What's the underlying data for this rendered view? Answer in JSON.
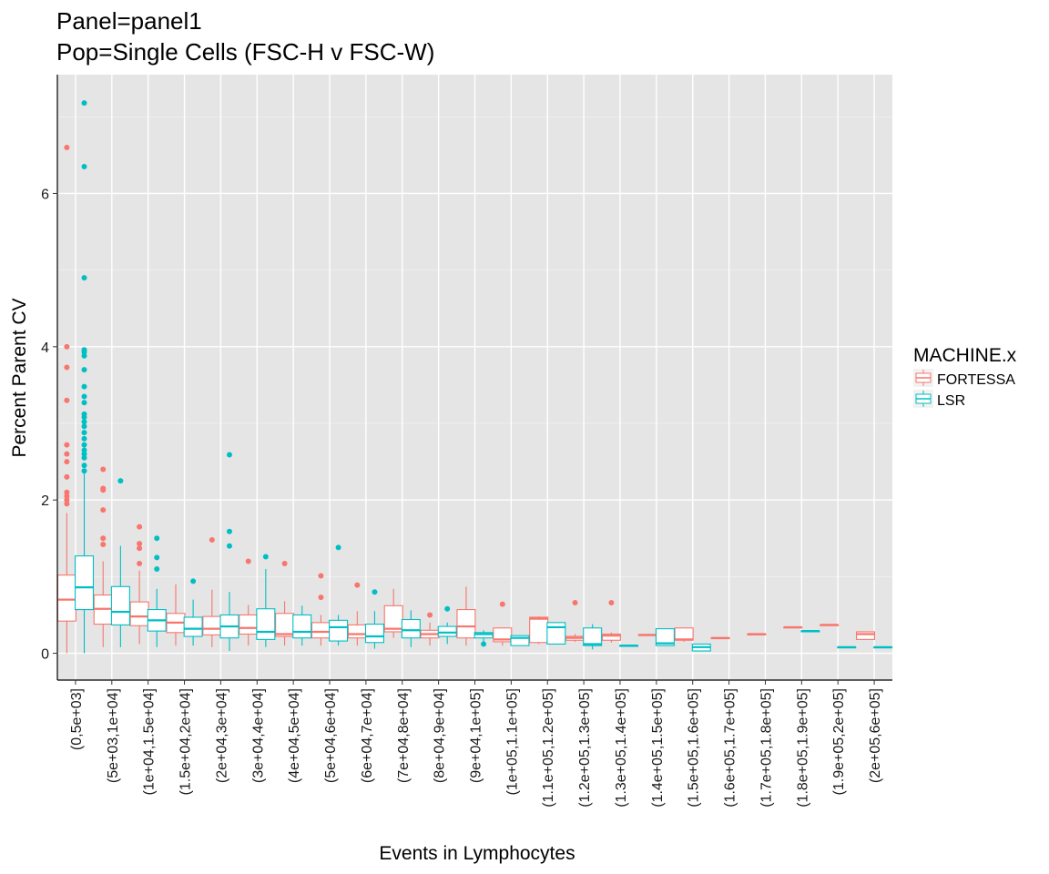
{
  "chart_data": {
    "type": "box",
    "title_lines": [
      "Panel=panel1",
      "Pop=Single Cells (FSC-H v FSC-W)"
    ],
    "xlabel": "Events in Lymphocytes",
    "ylabel": "Percent Parent CV",
    "ylim": [
      -0.35,
      7.55
    ],
    "yticks": [
      0,
      2,
      4,
      6
    ],
    "grid": true,
    "legend_position": "right",
    "legend_title": "MACHINE.x",
    "categories": [
      "(0,5e+03]",
      "(5e+03,1e+04]",
      "(1e+04,1.5e+04]",
      "(1.5e+04,2e+04]",
      "(2e+04,3e+04]",
      "(3e+04,4e+04]",
      "(4e+04,5e+04]",
      "(5e+04,6e+04]",
      "(6e+04,7e+04]",
      "(7e+04,8e+04]",
      "(8e+04,9e+04]",
      "(9e+04,1e+05]",
      "(1e+05,1.1e+05]",
      "(1.1e+05,1.2e+05]",
      "(1.2e+05,1.3e+05]",
      "(1.3e+05,1.4e+05]",
      "(1.4e+05,1.5e+05]",
      "(1.5e+05,1.6e+05]",
      "(1.6e+05,1.7e+05]",
      "(1.7e+05,1.8e+05]",
      "(1.8e+05,1.9e+05]",
      "(1.9e+05,2e+05]",
      "(2e+05,6e+05]"
    ],
    "series": [
      {
        "name": "FORTESSA",
        "color": "#F8766D",
        "boxes": [
          {
            "cat": 0,
            "min": 0.0,
            "q1": 0.42,
            "median": 0.7,
            "q3": 1.02,
            "max": 1.83,
            "outliers": [
              1.95,
              2.0,
              2.05,
              2.1,
              2.3,
              2.5,
              2.6,
              2.72,
              3.3,
              3.73,
              4.0,
              6.6
            ]
          },
          {
            "cat": 1,
            "min": 0.08,
            "q1": 0.38,
            "median": 0.58,
            "q3": 0.76,
            "max": 1.2,
            "outliers": [
              1.42,
              1.5,
              1.87,
              2.13,
              2.15,
              2.4
            ]
          },
          {
            "cat": 2,
            "min": 0.12,
            "q1": 0.36,
            "median": 0.48,
            "q3": 0.67,
            "max": 1.08,
            "outliers": [
              1.17,
              1.37,
              1.43,
              1.65
            ]
          },
          {
            "cat": 3,
            "min": 0.1,
            "q1": 0.27,
            "median": 0.4,
            "q3": 0.52,
            "max": 0.9,
            "outliers": []
          },
          {
            "cat": 4,
            "min": 0.08,
            "q1": 0.24,
            "median": 0.32,
            "q3": 0.48,
            "max": 0.83,
            "outliers": [
              1.48
            ]
          },
          {
            "cat": 5,
            "min": 0.1,
            "q1": 0.25,
            "median": 0.33,
            "q3": 0.5,
            "max": 0.63,
            "outliers": [
              1.2
            ]
          },
          {
            "cat": 6,
            "min": 0.1,
            "q1": 0.22,
            "median": 0.25,
            "q3": 0.52,
            "max": 0.68,
            "outliers": [
              1.17
            ]
          },
          {
            "cat": 7,
            "min": 0.1,
            "q1": 0.2,
            "median": 0.28,
            "q3": 0.4,
            "max": 0.5,
            "outliers": [
              0.73,
              1.01
            ]
          },
          {
            "cat": 8,
            "min": 0.1,
            "q1": 0.2,
            "median": 0.25,
            "q3": 0.37,
            "max": 0.55,
            "outliers": [
              0.89
            ]
          },
          {
            "cat": 9,
            "min": 0.2,
            "q1": 0.28,
            "median": 0.32,
            "q3": 0.62,
            "max": 0.84,
            "outliers": []
          },
          {
            "cat": 10,
            "min": 0.1,
            "q1": 0.2,
            "median": 0.25,
            "q3": 0.3,
            "max": 0.4,
            "outliers": [
              0.5
            ]
          },
          {
            "cat": 11,
            "min": 0.1,
            "q1": 0.2,
            "median": 0.35,
            "q3": 0.57,
            "max": 0.87,
            "outliers": []
          },
          {
            "cat": 12,
            "min": 0.1,
            "q1": 0.15,
            "median": 0.18,
            "q3": 0.33,
            "max": 0.33,
            "outliers": [
              0.64
            ]
          },
          {
            "cat": 13,
            "min": 0.12,
            "q1": 0.14,
            "median": 0.45,
            "q3": 0.47,
            "max": 0.48,
            "outliers": []
          },
          {
            "cat": 14,
            "min": 0.15,
            "q1": 0.17,
            "median": 0.2,
            "q3": 0.22,
            "max": 0.25,
            "outliers": [
              0.66
            ]
          },
          {
            "cat": 15,
            "min": 0.14,
            "q1": 0.17,
            "median": 0.23,
            "q3": 0.25,
            "max": 0.27,
            "outliers": [
              0.66
            ]
          },
          {
            "cat": 16,
            "min": 0.23,
            "q1": 0.23,
            "median": 0.24,
            "q3": 0.24,
            "max": 0.24,
            "outliers": []
          },
          {
            "cat": 17,
            "min": 0.15,
            "q1": 0.17,
            "median": 0.18,
            "q3": 0.33,
            "max": 0.33,
            "outliers": []
          },
          {
            "cat": 18,
            "min": 0.19,
            "q1": 0.19,
            "median": 0.2,
            "q3": 0.2,
            "max": 0.2,
            "outliers": []
          },
          {
            "cat": 19,
            "min": 0.24,
            "q1": 0.24,
            "median": 0.25,
            "q3": 0.25,
            "max": 0.25,
            "outliers": []
          },
          {
            "cat": 20,
            "min": 0.33,
            "q1": 0.33,
            "median": 0.34,
            "q3": 0.34,
            "max": 0.34,
            "outliers": []
          },
          {
            "cat": 21,
            "min": 0.36,
            "q1": 0.36,
            "median": 0.37,
            "q3": 0.37,
            "max": 0.37,
            "outliers": []
          },
          {
            "cat": 22,
            "min": 0.18,
            "q1": 0.18,
            "median": 0.25,
            "q3": 0.28,
            "max": 0.28,
            "outliers": []
          }
        ]
      },
      {
        "name": "LSR",
        "color": "#00BFC4",
        "boxes": [
          {
            "cat": 0,
            "min": 0.0,
            "q1": 0.57,
            "median": 0.86,
            "q3": 1.27,
            "max": 2.35,
            "outliers": [
              2.38,
              2.45,
              2.55,
              2.6,
              2.65,
              2.72,
              2.8,
              2.88,
              2.96,
              3.02,
              3.08,
              3.12,
              3.27,
              3.35,
              3.48,
              3.7,
              3.88,
              3.93,
              3.96,
              4.9,
              6.35,
              7.18
            ]
          },
          {
            "cat": 1,
            "min": 0.08,
            "q1": 0.37,
            "median": 0.54,
            "q3": 0.87,
            "max": 1.4,
            "outliers": [
              2.25
            ]
          },
          {
            "cat": 2,
            "min": 0.08,
            "q1": 0.29,
            "median": 0.43,
            "q3": 0.57,
            "max": 0.84,
            "outliers": [
              1.1,
              1.25,
              1.5
            ]
          },
          {
            "cat": 3,
            "min": 0.1,
            "q1": 0.22,
            "median": 0.32,
            "q3": 0.47,
            "max": 0.7,
            "outliers": [
              0.94
            ]
          },
          {
            "cat": 4,
            "min": 0.03,
            "q1": 0.2,
            "median": 0.35,
            "q3": 0.5,
            "max": 0.8,
            "outliers": [
              1.4,
              1.59,
              2.59
            ]
          },
          {
            "cat": 5,
            "min": 0.08,
            "q1": 0.18,
            "median": 0.28,
            "q3": 0.58,
            "max": 1.1,
            "outliers": [
              1.26
            ]
          },
          {
            "cat": 6,
            "min": 0.1,
            "q1": 0.2,
            "median": 0.28,
            "q3": 0.5,
            "max": 0.62,
            "outliers": []
          },
          {
            "cat": 7,
            "min": 0.1,
            "q1": 0.16,
            "median": 0.34,
            "q3": 0.43,
            "max": 0.5,
            "outliers": [
              1.38
            ]
          },
          {
            "cat": 8,
            "min": 0.06,
            "q1": 0.14,
            "median": 0.22,
            "q3": 0.38,
            "max": 0.55,
            "outliers": [
              0.8
            ]
          },
          {
            "cat": 9,
            "min": 0.08,
            "q1": 0.2,
            "median": 0.3,
            "q3": 0.44,
            "max": 0.56,
            "outliers": []
          },
          {
            "cat": 10,
            "min": 0.12,
            "q1": 0.22,
            "median": 0.27,
            "q3": 0.35,
            "max": 0.4,
            "outliers": [
              0.58
            ]
          },
          {
            "cat": 11,
            "min": 0.15,
            "q1": 0.2,
            "median": 0.25,
            "q3": 0.27,
            "max": 0.3,
            "outliers": [
              0.12
            ]
          },
          {
            "cat": 12,
            "min": 0.1,
            "q1": 0.1,
            "median": 0.2,
            "q3": 0.23,
            "max": 0.23,
            "outliers": []
          },
          {
            "cat": 13,
            "min": 0.12,
            "q1": 0.12,
            "median": 0.34,
            "q3": 0.4,
            "max": 0.4,
            "outliers": []
          },
          {
            "cat": 14,
            "min": 0.05,
            "q1": 0.1,
            "median": 0.12,
            "q3": 0.33,
            "max": 0.38,
            "outliers": []
          },
          {
            "cat": 15,
            "min": 0.09,
            "q1": 0.09,
            "median": 0.1,
            "q3": 0.1,
            "max": 0.1,
            "outliers": []
          },
          {
            "cat": 16,
            "min": 0.1,
            "q1": 0.1,
            "median": 0.13,
            "q3": 0.32,
            "max": 0.32,
            "outliers": []
          },
          {
            "cat": 17,
            "min": 0.03,
            "q1": 0.03,
            "median": 0.08,
            "q3": 0.12,
            "max": 0.12,
            "outliers": []
          },
          {
            "cat": 20,
            "min": 0.28,
            "q1": 0.28,
            "median": 0.29,
            "q3": 0.29,
            "max": 0.29,
            "outliers": []
          },
          {
            "cat": 21,
            "min": 0.07,
            "q1": 0.07,
            "median": 0.08,
            "q3": 0.08,
            "max": 0.08,
            "outliers": []
          },
          {
            "cat": 22,
            "min": 0.07,
            "q1": 0.07,
            "median": 0.08,
            "q3": 0.08,
            "max": 0.08,
            "outliers": []
          }
        ]
      }
    ]
  }
}
